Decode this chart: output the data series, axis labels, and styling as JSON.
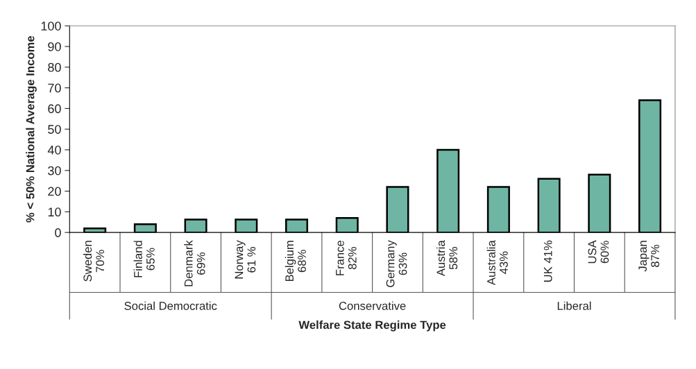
{
  "chart_data": {
    "type": "bar",
    "xlabel": "Welfare State Regime Type",
    "ylabel": "% < 50% National Average Income",
    "categories": [
      "Sweden\n70%",
      "Finland\n65%",
      "Denmark\n69%",
      "Norway\n61 %",
      "Belgium\n68%",
      "France\n82%",
      "Germany\n63%",
      "Austria\n58%",
      "Australia\n43%",
      "UK 41%",
      "USA\n60%",
      "Japan\n87%"
    ],
    "values": [
      2,
      4,
      6.3,
      6.3,
      6.3,
      7,
      22,
      40,
      22,
      26,
      28,
      64
    ],
    "color": "#6fb5a3",
    "annotations": [
      "Social Democratic",
      "Conservative",
      "Liberal"
    ],
    "ylim": [
      0,
      100
    ],
    "yticks": [
      0,
      10,
      20,
      30,
      40,
      50,
      60,
      70,
      80,
      90,
      100
    ],
    "grid": false
  }
}
